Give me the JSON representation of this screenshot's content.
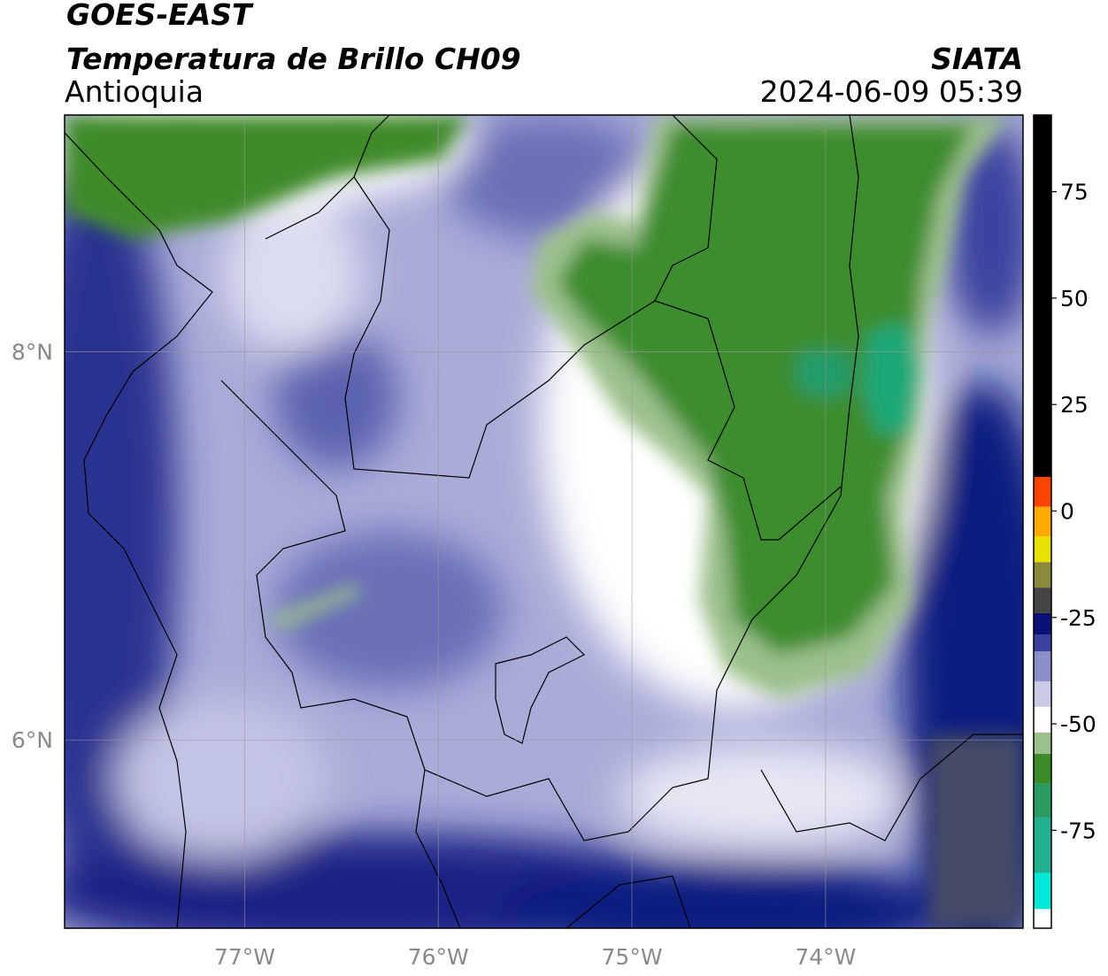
{
  "header": {
    "title": "GOES-EAST",
    "subtitle": "Temperatura de Brillo CH09",
    "region": "Antioquia",
    "source": "SIATA",
    "datetime": "2024-06-09 05:39"
  },
  "map": {
    "xlim": [
      -77.93,
      -72.98
    ],
    "ylim": [
      5.03,
      9.22
    ],
    "xticks": [
      {
        "value": -77,
        "label": "77°W"
      },
      {
        "value": -76,
        "label": "76°W"
      },
      {
        "value": -75,
        "label": "75°W"
      },
      {
        "value": -74,
        "label": "74°W"
      }
    ],
    "yticks": [
      {
        "value": 6,
        "label": "6°N"
      },
      {
        "value": 8,
        "label": "8°N"
      }
    ],
    "grid": true
  },
  "colorbar": {
    "lim": [
      -98,
      93
    ],
    "ticks": [
      -75,
      -50,
      -25,
      0,
      25,
      50,
      75
    ],
    "stops": [
      {
        "value": -98,
        "color": "#ffffff"
      },
      {
        "value": -93.5,
        "color": "#00e8d8"
      },
      {
        "value": -85,
        "color": "#22b090"
      },
      {
        "value": -72,
        "color": "#2a9a60"
      },
      {
        "value": -64,
        "color": "#3c8a28"
      },
      {
        "value": -57,
        "color": "#9cc08c"
      },
      {
        "value": -52,
        "color": "#ffffff"
      },
      {
        "value": -46,
        "color": "#c8cae6"
      },
      {
        "value": -40,
        "color": "#8a8fca"
      },
      {
        "value": -33,
        "color": "#3c429c"
      },
      {
        "value": -29,
        "color": "#0a1278"
      },
      {
        "value": -24,
        "color": "#444444"
      },
      {
        "value": -18,
        "color": "#8a8a3a"
      },
      {
        "value": -12,
        "color": "#e8e000"
      },
      {
        "value": -6,
        "color": "#ffaa00"
      },
      {
        "value": 1,
        "color": "#ff4400"
      },
      {
        "value": 8,
        "color": "#000000"
      }
    ]
  }
}
